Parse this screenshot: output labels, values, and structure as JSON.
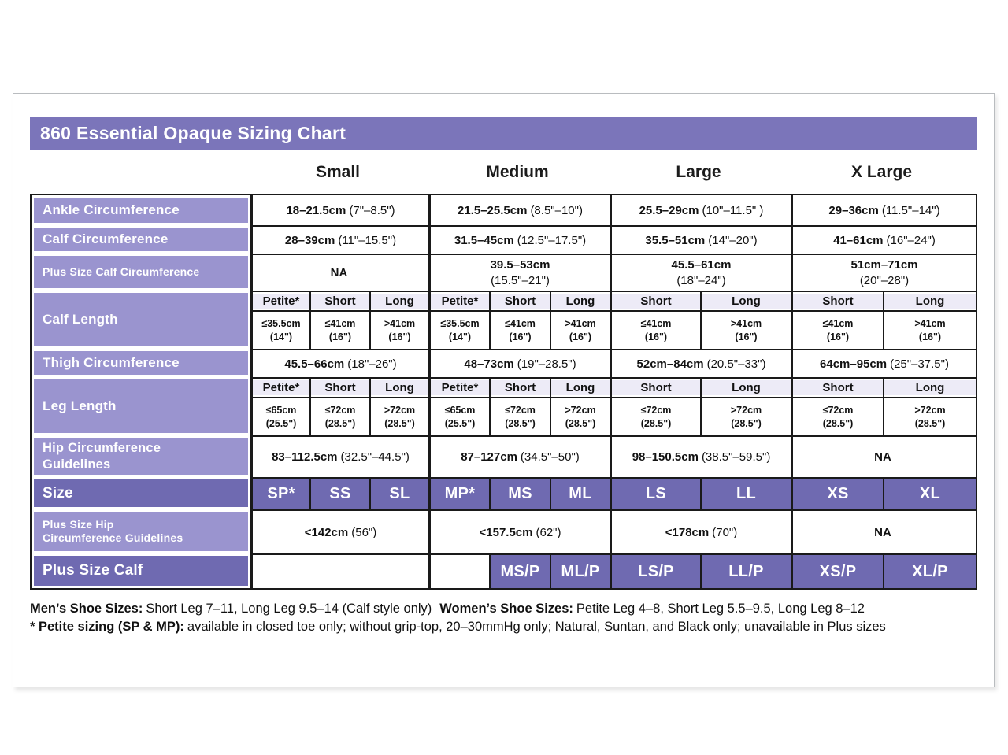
{
  "title": "860 Essential Opaque Sizing Chart",
  "columns": [
    "Small",
    "Medium",
    "Large",
    "X Large"
  ],
  "colors": {
    "title_bar_purple": "#7b75ba",
    "row_label_purple": "#9a94cf",
    "dark_row_purple": "#6f6ab1",
    "subheader_lavender": "#edebf7",
    "table_border": "#1a1a1a"
  },
  "rows": {
    "ankle": {
      "label": "Ankle Circumference",
      "values": [
        {
          "cm": "18–21.5cm",
          "in": "(7\"–8.5\")"
        },
        {
          "cm": "21.5–25.5cm",
          "in": "(8.5\"–10\")"
        },
        {
          "cm": "25.5–29cm",
          "in": "(10\"–11.5\" )"
        },
        {
          "cm": "29–36cm",
          "in": "(11.5\"–14\")"
        }
      ]
    },
    "calf": {
      "label": "Calf Circumference",
      "values": [
        {
          "cm": "28–39cm",
          "in": "(11\"–15.5\")"
        },
        {
          "cm": "31.5–45cm",
          "in": "(12.5\"–17.5\")"
        },
        {
          "cm": "35.5–51cm",
          "in": "(14\"–20\")"
        },
        {
          "cm": "41–61cm",
          "in": "(16\"–24\")"
        }
      ]
    },
    "plus_calf_circ": {
      "label": "Plus Size Calf Circumference",
      "values": [
        {
          "cm": "NA",
          "in": ""
        },
        {
          "cm": "39.5–53cm",
          "in": "(15.5\"–21\")"
        },
        {
          "cm": "45.5–61cm",
          "in": "(18\"–24\")"
        },
        {
          "cm": "51cm–71cm",
          "in": "(20\"–28\")"
        }
      ]
    },
    "calf_length": {
      "label": "Calf Length",
      "subheads": [
        "Petite*",
        "Short",
        "Long",
        "Petite*",
        "Short",
        "Long",
        "Short",
        "Long",
        "Short",
        "Long"
      ],
      "values": [
        {
          "cm": "≤35.5cm",
          "in": "(14\")"
        },
        {
          "cm": "≤41cm",
          "in": "(16\")"
        },
        {
          "cm": ">41cm",
          "in": "(16\")"
        },
        {
          "cm": "≤35.5cm",
          "in": "(14\")"
        },
        {
          "cm": "≤41cm",
          "in": "(16\")"
        },
        {
          "cm": ">41cm",
          "in": "(16\")"
        },
        {
          "cm": "≤41cm",
          "in": "(16\")"
        },
        {
          "cm": ">41cm",
          "in": "(16\")"
        },
        {
          "cm": "≤41cm",
          "in": "(16\")"
        },
        {
          "cm": ">41cm",
          "in": "(16\")"
        }
      ]
    },
    "thigh": {
      "label": "Thigh Circumference",
      "values": [
        {
          "cm": "45.5–66cm",
          "in": "(18\"–26\")"
        },
        {
          "cm": "48–73cm",
          "in": "(19\"–28.5\")"
        },
        {
          "cm": "52cm–84cm",
          "in": "(20.5\"–33\")"
        },
        {
          "cm": "64cm–95cm",
          "in": "(25\"–37.5\")"
        }
      ]
    },
    "leg_length": {
      "label": "Leg Length",
      "subheads": [
        "Petite*",
        "Short",
        "Long",
        "Petite*",
        "Short",
        "Long",
        "Short",
        "Long",
        "Short",
        "Long"
      ],
      "values": [
        {
          "cm": "≤65cm",
          "in": "(25.5\")"
        },
        {
          "cm": "≤72cm",
          "in": "(28.5\")"
        },
        {
          "cm": ">72cm",
          "in": "(28.5\")"
        },
        {
          "cm": "≤65cm",
          "in": "(25.5\")"
        },
        {
          "cm": "≤72cm",
          "in": "(28.5\")"
        },
        {
          "cm": ">72cm",
          "in": "(28.5\")"
        },
        {
          "cm": "≤72cm",
          "in": "(28.5\")"
        },
        {
          "cm": ">72cm",
          "in": "(28.5\")"
        },
        {
          "cm": "≤72cm",
          "in": "(28.5\")"
        },
        {
          "cm": ">72cm",
          "in": "(28.5\")"
        }
      ]
    },
    "hip": {
      "lines": [
        "Hip Circumference",
        "Guidelines"
      ],
      "values": [
        {
          "cm": "83–112.5cm",
          "in": "(32.5\"–44.5\")"
        },
        {
          "cm": "87–127cm",
          "in": "(34.5\"–50\")"
        },
        {
          "cm": "98–150.5cm",
          "in": "(38.5\"–59.5\")"
        },
        {
          "cm": "NA",
          "in": ""
        }
      ]
    },
    "size": {
      "label": "Size",
      "values": [
        "SP*",
        "SS",
        "SL",
        "MP*",
        "MS",
        "ML",
        "LS",
        "LL",
        "XS",
        "XL"
      ]
    },
    "plus_hip": {
      "lines": [
        "Plus Size Hip",
        "Circumference Guidelines"
      ],
      "values": [
        {
          "cm": "<142cm",
          "in": "(56\")"
        },
        {
          "cm": "<157.5cm",
          "in": "(62\")"
        },
        {
          "cm": "<178cm",
          "in": "(70\")"
        },
        {
          "cm": "NA",
          "in": ""
        }
      ]
    },
    "plus_calf": {
      "label": "Plus Size Calf",
      "values": [
        "MS/P",
        "ML/P",
        "LS/P",
        "LL/P",
        "XS/P",
        "XL/P"
      ]
    }
  },
  "footnotes": {
    "mens_label": "Men’s Shoe Sizes:",
    "mens_text": "Short Leg 7–11, Long Leg 9.5–14 (Calf style only)",
    "womens_label": "Women’s Shoe Sizes:",
    "womens_text": "Petite Leg 4–8,  Short Leg 5.5–9.5, Long Leg 8–12",
    "petite_label": "* Petite sizing (SP & MP):",
    "petite_text": "available in closed toe only; without grip-top, 20–30mmHg only; Natural, Suntan, and Black only; unavailable in Plus sizes"
  }
}
